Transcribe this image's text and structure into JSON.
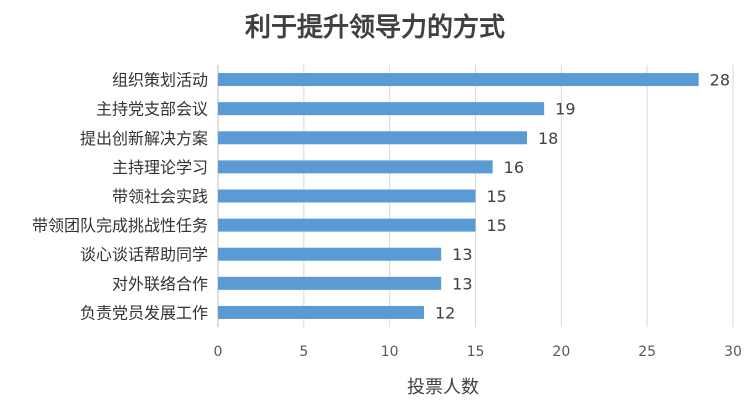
{
  "title": "利于提升领导力的方式",
  "xlabel": "投票人数",
  "colors": {
    "bar": "#5b9bd5"
  },
  "chart_data": {
    "type": "bar",
    "orientation": "horizontal",
    "title": "利于提升领导力的方式",
    "xlabel": "投票人数",
    "ylabel": "",
    "categories": [
      "组织策划活动",
      "主持党支部会议",
      "提出创新解决方案",
      "主持理论学习",
      "带领社会实践",
      "带领团队完成挑战性任务",
      "谈心谈话帮助同学",
      "对外联络合作",
      "负责党员发展工作"
    ],
    "values": [
      28,
      19,
      18,
      16,
      15,
      15,
      13,
      13,
      12
    ],
    "xlim": [
      0,
      30
    ],
    "xticks": [
      0,
      5,
      10,
      15,
      20,
      25,
      30
    ],
    "grid": true,
    "legend": "none"
  }
}
